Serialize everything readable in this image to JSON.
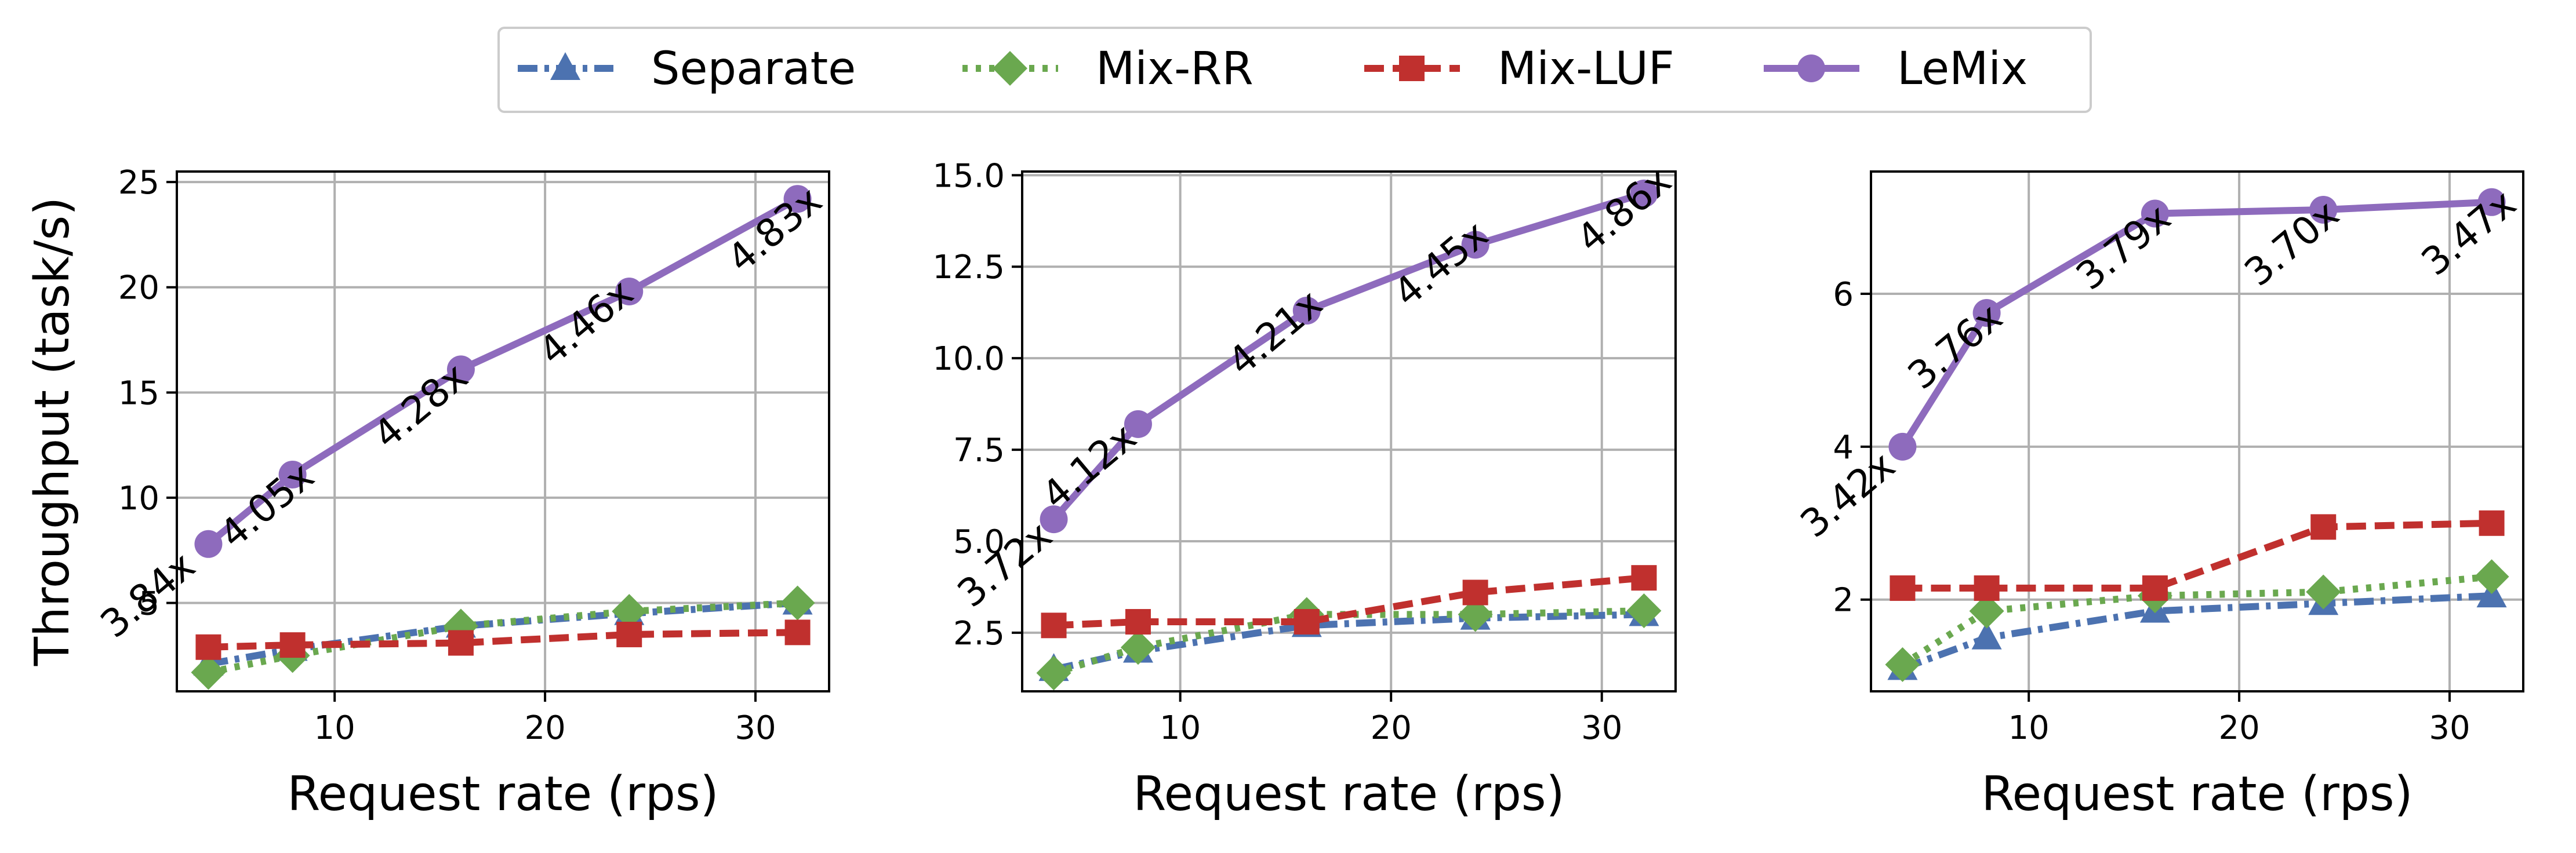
{
  "legend": {
    "placement": "top-center",
    "items": [
      {
        "label": "Separate",
        "color": "#4c72b0",
        "marker": "triangle",
        "dash": "dashdot"
      },
      {
        "label": "Mix-RR",
        "color": "#6aa84f",
        "marker": "diamond",
        "dash": "dotted"
      },
      {
        "label": "Mix-LUF",
        "color": "#c0302e",
        "marker": "square",
        "dash": "dashed"
      },
      {
        "label": "LeMix",
        "color": "#8e6bbd",
        "marker": "circle",
        "dash": "solid"
      }
    ]
  },
  "chart_data": [
    {
      "type": "line",
      "xlabel": "Request rate (rps)",
      "ylabel": "Throughput (task/s)",
      "xlim": [
        2.5,
        33.5
      ],
      "ylim": [
        0.8,
        25.5
      ],
      "xticks": [
        10,
        20,
        30
      ],
      "yticks": [
        5,
        10,
        15,
        20,
        25
      ],
      "ytick_labels": [
        "5",
        "10",
        "15",
        "20",
        "25"
      ],
      "grid": true,
      "x": [
        4,
        8,
        16,
        24,
        32
      ],
      "series": [
        {
          "name": "Separate",
          "values": [
            2.1,
            2.8,
            3.9,
            4.5,
            5.0
          ]
        },
        {
          "name": "Mix-RR",
          "values": [
            1.7,
            2.5,
            3.9,
            4.6,
            5.0
          ]
        },
        {
          "name": "Mix-LUF",
          "values": [
            2.9,
            3.0,
            3.1,
            3.5,
            3.6
          ]
        },
        {
          "name": "LeMix",
          "values": [
            7.8,
            11.1,
            16.1,
            19.8,
            24.2
          ]
        }
      ],
      "annotations": [
        "3.84x",
        "4.05x",
        "4.28x",
        "4.46x",
        "4.83x"
      ]
    },
    {
      "type": "line",
      "xlabel": "Request rate (rps)",
      "ylabel": "",
      "xlim": [
        2.5,
        33.5
      ],
      "ylim": [
        0.9,
        15.1
      ],
      "xticks": [
        10,
        20,
        30
      ],
      "yticks": [
        2.5,
        5.0,
        7.5,
        10.0,
        12.5,
        15.0
      ],
      "ytick_labels": [
        "2.5",
        "5.0",
        "7.5",
        "10.0",
        "12.5",
        "15.0"
      ],
      "grid": true,
      "x": [
        4,
        8,
        16,
        24,
        32
      ],
      "series": [
        {
          "name": "Separate",
          "values": [
            1.5,
            2.0,
            2.7,
            2.9,
            3.0
          ]
        },
        {
          "name": "Mix-RR",
          "values": [
            1.4,
            2.1,
            3.0,
            3.0,
            3.1
          ]
        },
        {
          "name": "Mix-LUF",
          "values": [
            2.7,
            2.8,
            2.8,
            3.6,
            4.0
          ]
        },
        {
          "name": "LeMix",
          "values": [
            5.6,
            8.2,
            11.3,
            13.1,
            14.5
          ]
        }
      ],
      "annotations": [
        "3.72x",
        "4.12x",
        "4.21x",
        "4.45x",
        "4.86x"
      ]
    },
    {
      "type": "line",
      "xlabel": "Request rate (rps)",
      "ylabel": "",
      "xlim": [
        2.5,
        33.5
      ],
      "ylim": [
        0.8,
        7.6
      ],
      "xticks": [
        10,
        20,
        30
      ],
      "yticks": [
        2,
        4,
        6
      ],
      "ytick_labels": [
        "2",
        "4",
        "6"
      ],
      "grid": true,
      "x": [
        4,
        8,
        16,
        24,
        32
      ],
      "series": [
        {
          "name": "Separate",
          "values": [
            1.1,
            1.5,
            1.85,
            1.95,
            2.05
          ]
        },
        {
          "name": "Mix-RR",
          "values": [
            1.15,
            1.85,
            2.05,
            2.1,
            2.3
          ]
        },
        {
          "name": "Mix-LUF",
          "values": [
            2.15,
            2.15,
            2.15,
            2.95,
            3.0
          ]
        },
        {
          "name": "LeMix",
          "values": [
            4.0,
            5.75,
            7.05,
            7.1,
            7.2
          ]
        }
      ],
      "annotations": [
        "3.42x",
        "3.76x",
        "3.79x",
        "3.70x",
        "3.47x"
      ]
    }
  ]
}
